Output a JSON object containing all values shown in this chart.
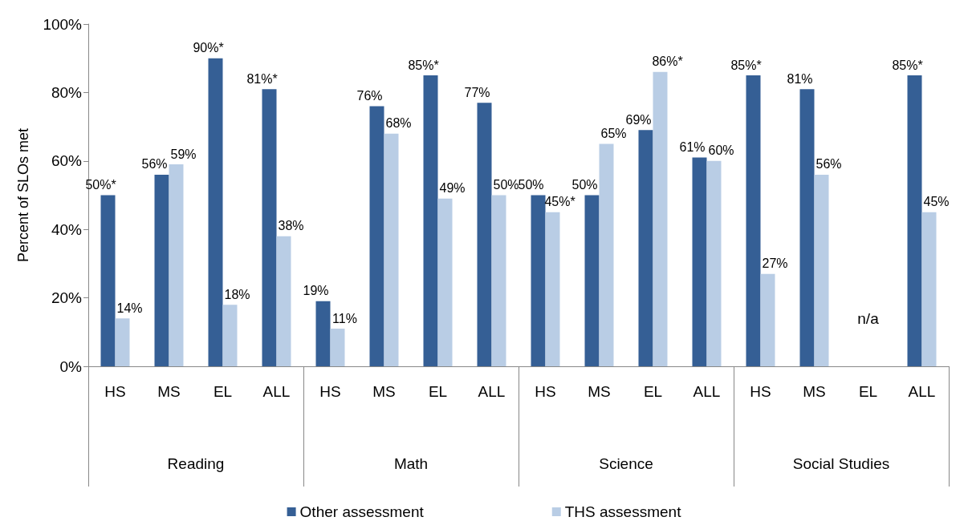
{
  "chart_data": {
    "type": "bar",
    "ylabel": "Percent of SLOs met",
    "categories": [
      "HS",
      "MS",
      "EL",
      "ALL",
      "HS",
      "MS",
      "EL",
      "ALL",
      "HS",
      "MS",
      "EL",
      "ALL",
      "HS",
      "MS",
      "EL",
      "ALL"
    ],
    "annotations": [
      "Reading",
      "Math",
      "Science",
      "Social Studies"
    ],
    "series": [
      {
        "name": "Other assessment",
        "color": "#355f95",
        "values": [
          50,
          56,
          90,
          81,
          19,
          76,
          85,
          77,
          50,
          50,
          69,
          61,
          85,
          81,
          null,
          85
        ],
        "value_labels": [
          "50%*",
          "56%",
          "90%*",
          "81%*",
          "19%",
          "76%",
          "85%*",
          "77%",
          "50%",
          "50%",
          "69%",
          "61%",
          "85%*",
          "81%",
          "n/a",
          "85%*"
        ]
      },
      {
        "name": "THS assessment",
        "color": "#b9cde5",
        "values": [
          14,
          59,
          18,
          38,
          11,
          68,
          49,
          50,
          45,
          65,
          86,
          60,
          27,
          56,
          null,
          45
        ],
        "value_labels": [
          "14%",
          "59%",
          "18%",
          "38%",
          "11%",
          "68%",
          "49%",
          "50%",
          "45%*",
          "65%",
          "86%*",
          "60%",
          "27%",
          "56%",
          null,
          "45%"
        ]
      }
    ],
    "ylim": [
      0,
      100
    ],
    "yticks": [
      {
        "value": 0,
        "label": "0%"
      },
      {
        "value": 20,
        "label": "20%"
      },
      {
        "value": 40,
        "label": "40%"
      },
      {
        "value": 60,
        "label": "60%"
      },
      {
        "value": 80,
        "label": "80%"
      },
      {
        "value": 100,
        "label": "100%"
      }
    ],
    "grid": false,
    "legend": "bottom"
  }
}
